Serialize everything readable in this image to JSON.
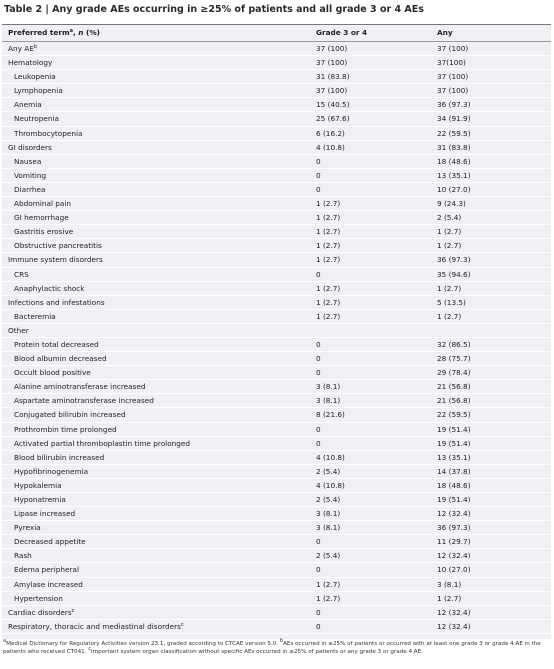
{
  "title": "Table 2 | Any grade AEs occurring in ≥25% of patients and all grade 3 or 4 AEs",
  "table": {
    "header": {
      "term": "Preferred term",
      "sup": "a",
      "sep": ", ",
      "n": "n",
      "pct": " (%)",
      "grade": "Grade 3 or 4",
      "any": "Any"
    },
    "rows": [
      {
        "label": "Any AE",
        "sup": "b",
        "level": 0,
        "grade": "37 (100)",
        "any": "37 (100)"
      },
      {
        "label": "Hematology",
        "level": 0,
        "grade": "37 (100)",
        "any": "37(100)"
      },
      {
        "label": "Leukopenia",
        "level": 1,
        "grade": "31 (83.8)",
        "any": "37 (100)"
      },
      {
        "label": "Lymphopenia",
        "level": 1,
        "grade": "37 (100)",
        "any": "37 (100)"
      },
      {
        "label": "Anemia",
        "level": 1,
        "grade": "15 (40.5)",
        "any": "36 (97.3)"
      },
      {
        "label": "Neutropenia",
        "level": 1,
        "grade": "25 (67.6)",
        "any": "34 (91.9)"
      },
      {
        "label": "Thrombocytopenia",
        "level": 1,
        "grade": "6 (16.2)",
        "any": "22 (59.5)"
      },
      {
        "label": "GI disorders",
        "level": 0,
        "grade": "4 (10.8)",
        "any": "31 (83.8)"
      },
      {
        "label": "Nausea",
        "level": 1,
        "grade": "0",
        "any": "18 (48.6)"
      },
      {
        "label": "Vomiting",
        "level": 1,
        "grade": "0",
        "any": "13 (35.1)"
      },
      {
        "label": "Diarrhea",
        "level": 1,
        "grade": "0",
        "any": "10 (27.0)"
      },
      {
        "label": "Abdominal pain",
        "level": 1,
        "grade": "1 (2.7)",
        "any": "9 (24.3)"
      },
      {
        "label": "GI hemorrhage",
        "level": 1,
        "grade": "1 (2.7)",
        "any": "2 (5.4)"
      },
      {
        "label": "Gastritis erosive",
        "level": 1,
        "grade": "1 (2.7)",
        "any": "1 (2.7)"
      },
      {
        "label": "Obstructive pancreatitis",
        "level": 1,
        "grade": "1 (2.7)",
        "any": "1 (2.7)"
      },
      {
        "label": "Immune system disorders",
        "level": 0,
        "grade": "1 (2.7)",
        "any": "36 (97.3)"
      },
      {
        "label": "CRS",
        "level": 1,
        "grade": "0",
        "any": "35 (94.6)"
      },
      {
        "label": "Anaphylactic shock",
        "level": 1,
        "grade": "1 (2.7)",
        "any": "1 (2.7)"
      },
      {
        "label": "Infections and infestations",
        "level": 0,
        "grade": "1 (2.7)",
        "any": "5 (13.5)"
      },
      {
        "label": "Bacteremia",
        "level": 1,
        "grade": "1 (2.7)",
        "any": "1 (2.7)"
      },
      {
        "label": "Other",
        "level": 0
      },
      {
        "label": "Protein total decreased",
        "level": 1,
        "grade": "0",
        "any": "32 (86.5)"
      },
      {
        "label": "Blood albumin decreased",
        "level": 1,
        "grade": "0",
        "any": "28 (75.7)"
      },
      {
        "label": "Occult blood positive",
        "level": 1,
        "grade": "0",
        "any": "29 (78.4)"
      },
      {
        "label": "Alanine aminotransferase increased",
        "level": 1,
        "grade": "3 (8.1)",
        "any": "21 (56.8)"
      },
      {
        "label": "Aspartate aminotransferase increased",
        "level": 1,
        "grade": "3 (8.1)",
        "any": "21 (56.8)"
      },
      {
        "label": "Conjugated bilirubin increased",
        "level": 1,
        "grade": "8 (21.6)",
        "any": "22 (59.5)"
      },
      {
        "label": "Prothrombin time prolonged",
        "level": 1,
        "grade": "0",
        "any": "19 (51.4)"
      },
      {
        "label": "Activated partial thromboplastin time prolonged",
        "level": 1,
        "grade": "0",
        "any": "19 (51.4)"
      },
      {
        "label": "Blood bilirubin increased",
        "level": 1,
        "grade": "4 (10.8)",
        "any": "13 (35.1)"
      },
      {
        "label": "Hypofibrinogenemia",
        "level": 1,
        "grade": "2 (5.4)",
        "any": "14 (37.8)"
      },
      {
        "label": "Hypokalemia",
        "level": 1,
        "grade": "4 (10.8)",
        "any": "18 (48.6)"
      },
      {
        "label": "Hyponatremia",
        "level": 1,
        "grade": "2 (5.4)",
        "any": "19 (51.4)"
      },
      {
        "label": "Lipase increased",
        "level": 1,
        "grade": "3 (8.1)",
        "any": "12 (32.4)"
      },
      {
        "label": "Pyrexia",
        "level": 1,
        "grade": "3 (8.1)",
        "any": "36 (97.3)"
      },
      {
        "label": "Decreased appetite",
        "level": 1,
        "grade": "0",
        "any": "11 (29.7)"
      },
      {
        "label": "Rash",
        "level": 1,
        "grade": "2 (5.4)",
        "any": "12 (32.4)"
      },
      {
        "label": "Edema peripheral",
        "level": 1,
        "grade": "0",
        "any": "10 (27.0)"
      },
      {
        "label": "Amylase increased",
        "level": 1,
        "grade": "1 (2.7)",
        "any": "3 (8.1)"
      },
      {
        "label": "Hypertension",
        "level": 1,
        "grade": "1 (2.7)",
        "any": "1 (2.7)"
      },
      {
        "label": "Cardiac disorders",
        "sup": "c",
        "level": 0,
        "grade": "0",
        "any": "12 (32.4)"
      },
      {
        "label": "Respiratory, thoracic and mediastinal disorders",
        "sup": "c",
        "level": 0,
        "grade": "0",
        "any": "12 (32.4)"
      }
    ]
  },
  "footnotes": [
    {
      "sup": "a",
      "text": "Medical Dictionary for Regulatory Activities version 23.1, graded according to CTCAE version 5.0. "
    },
    {
      "sup": "b",
      "text": "AEs occurred in ≥25% of patients or occurred with at least one grade 3 or grade 4 AE in the patients who received CT041. "
    },
    {
      "sup": "c",
      "text": "Important system organ classification without specific AEs occurred in ≥25% of patients or any grade 3 or grade 4 AE."
    }
  ]
}
